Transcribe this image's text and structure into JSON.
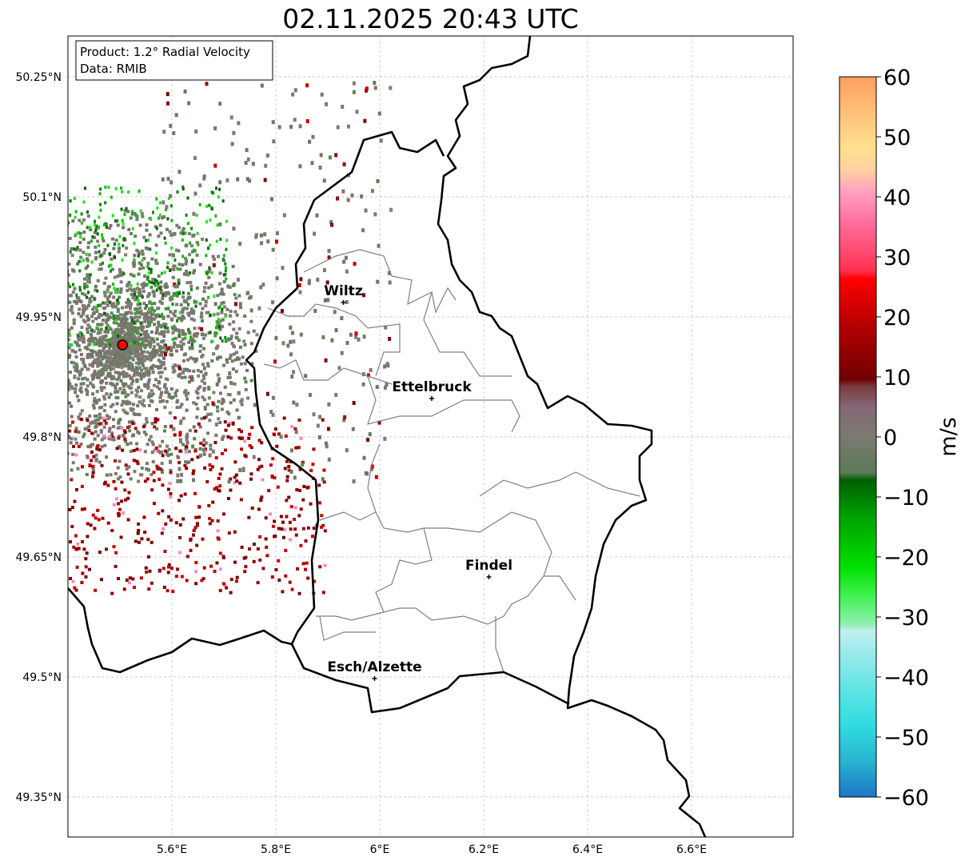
{
  "title": "02.11.2025 20:43 UTC",
  "info_box": {
    "product": "Product: 1.2° Radial Velocity",
    "data": "Data: RMIB"
  },
  "lon_ticks": [
    "5.6°E",
    "5.8°E",
    "6°E",
    "6.2°E",
    "6.4°E",
    "6.6°E"
  ],
  "lon_values": [
    5.6,
    5.8,
    6.0,
    6.2,
    6.4,
    6.6
  ],
  "lat_ticks": [
    "50.25°N",
    "50.1°N",
    "49.95°N",
    "49.8°N",
    "49.65°N",
    "49.5°N",
    "49.35°N"
  ],
  "lat_values": [
    50.25,
    50.1,
    49.95,
    49.8,
    49.65,
    49.5,
    49.35
  ],
  "extent": {
    "lon": [
      5.4,
      6.795
    ],
    "lat": [
      49.25,
      50.301
    ]
  },
  "cities": [
    {
      "name": "Wiltz",
      "lon": 5.93,
      "lat": 49.968
    },
    {
      "name": "Ettelbruck",
      "lon": 6.1,
      "lat": 49.848
    },
    {
      "name": "Findel",
      "lon": 6.21,
      "lat": 49.625
    },
    {
      "name": "Esch/Alzette",
      "lon": 5.99,
      "lat": 49.498
    }
  ],
  "radar_site": {
    "lon": 5.505,
    "lat": 49.915,
    "color": "#ff0000"
  },
  "colorbar": {
    "label": "m/s",
    "range": [
      -60,
      60
    ],
    "ticks": [
      "60",
      "50",
      "40",
      "30",
      "20",
      "10",
      "0",
      "−10",
      "−20",
      "−30",
      "−40",
      "−50",
      "−60"
    ],
    "tick_values": [
      60,
      50,
      40,
      30,
      20,
      10,
      0,
      -10,
      -20,
      -30,
      -40,
      -50,
      -60
    ]
  }
}
